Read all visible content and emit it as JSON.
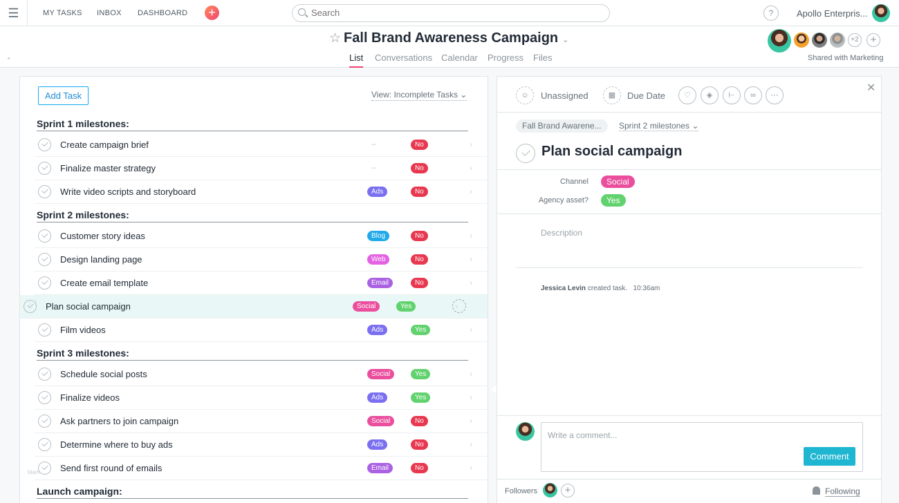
{
  "topbar": {
    "nav": [
      "MY TASKS",
      "INBOX",
      "DASHBOARD"
    ],
    "search_placeholder": "Search",
    "help": "?",
    "org": "Apollo Enterpris..."
  },
  "header": {
    "title": "Fall Brand Awareness Campaign",
    "tabs": [
      "List",
      "Conversations",
      "Calendar",
      "Progress",
      "Files"
    ],
    "active_tab": "List",
    "members_extra": "+2",
    "shared": "Shared with Marketing"
  },
  "list": {
    "add_task": "Add Task",
    "view": "View: Incomplete Tasks",
    "sections": [
      {
        "title": "Sprint 1 milestones:",
        "tasks": [
          {
            "name": "Create campaign brief",
            "channel": "",
            "agency": "No"
          },
          {
            "name": "Finalize master strategy",
            "channel": "",
            "agency": "No"
          },
          {
            "name": "Write video scripts and storyboard",
            "channel": "Ads",
            "agency": "No"
          }
        ]
      },
      {
        "title": "Sprint 2 milestones:",
        "tasks": [
          {
            "name": "Customer story ideas",
            "channel": "Blog",
            "agency": "No"
          },
          {
            "name": "Design landing page",
            "channel": "Web",
            "agency": "No"
          },
          {
            "name": "Create email template",
            "channel": "Email",
            "agency": "No"
          },
          {
            "name": "Plan social campaign",
            "channel": "Social",
            "agency": "Yes"
          },
          {
            "name": "Film videos",
            "channel": "Ads",
            "agency": "Yes"
          }
        ]
      },
      {
        "title": "Sprint 3 milestones:",
        "tasks": [
          {
            "name": "Schedule social posts",
            "channel": "Social",
            "agency": "Yes"
          },
          {
            "name": "Finalize videos",
            "channel": "Ads",
            "agency": "Yes"
          },
          {
            "name": "Ask partners to join campaign",
            "channel": "Social",
            "agency": "No"
          },
          {
            "name": "Determine where to buy ads",
            "channel": "Ads",
            "agency": "No"
          },
          {
            "name": "Send first round of emails",
            "channel": "Email",
            "agency": "No"
          }
        ]
      },
      {
        "title": "Launch campaign:",
        "tasks": []
      }
    ]
  },
  "colors": {
    "Ads": "#7a6ff0",
    "Blog": "#20aaea",
    "Web": "#e362e3",
    "Email": "#aa62e3",
    "Social": "#ea4e9d",
    "No": "#e8384f",
    "Yes": "#62d26f"
  },
  "detail": {
    "assignee": "Unassigned",
    "due": "Due Date",
    "project": "Fall Brand Awarene...",
    "section": "Sprint 2 milestones",
    "task_name": "Plan social campaign",
    "channel_label": "Channel",
    "channel_value": "Social",
    "agency_label": "Agency asset?",
    "agency_value": "Yes",
    "description_placeholder": "Description",
    "story_author": "Jessica Levin",
    "story_text": "created task.",
    "story_time": "10:36am",
    "comment_placeholder": "Write a comment...",
    "comment_button": "Comment",
    "followers_label": "Followers",
    "following_label": "Following"
  }
}
